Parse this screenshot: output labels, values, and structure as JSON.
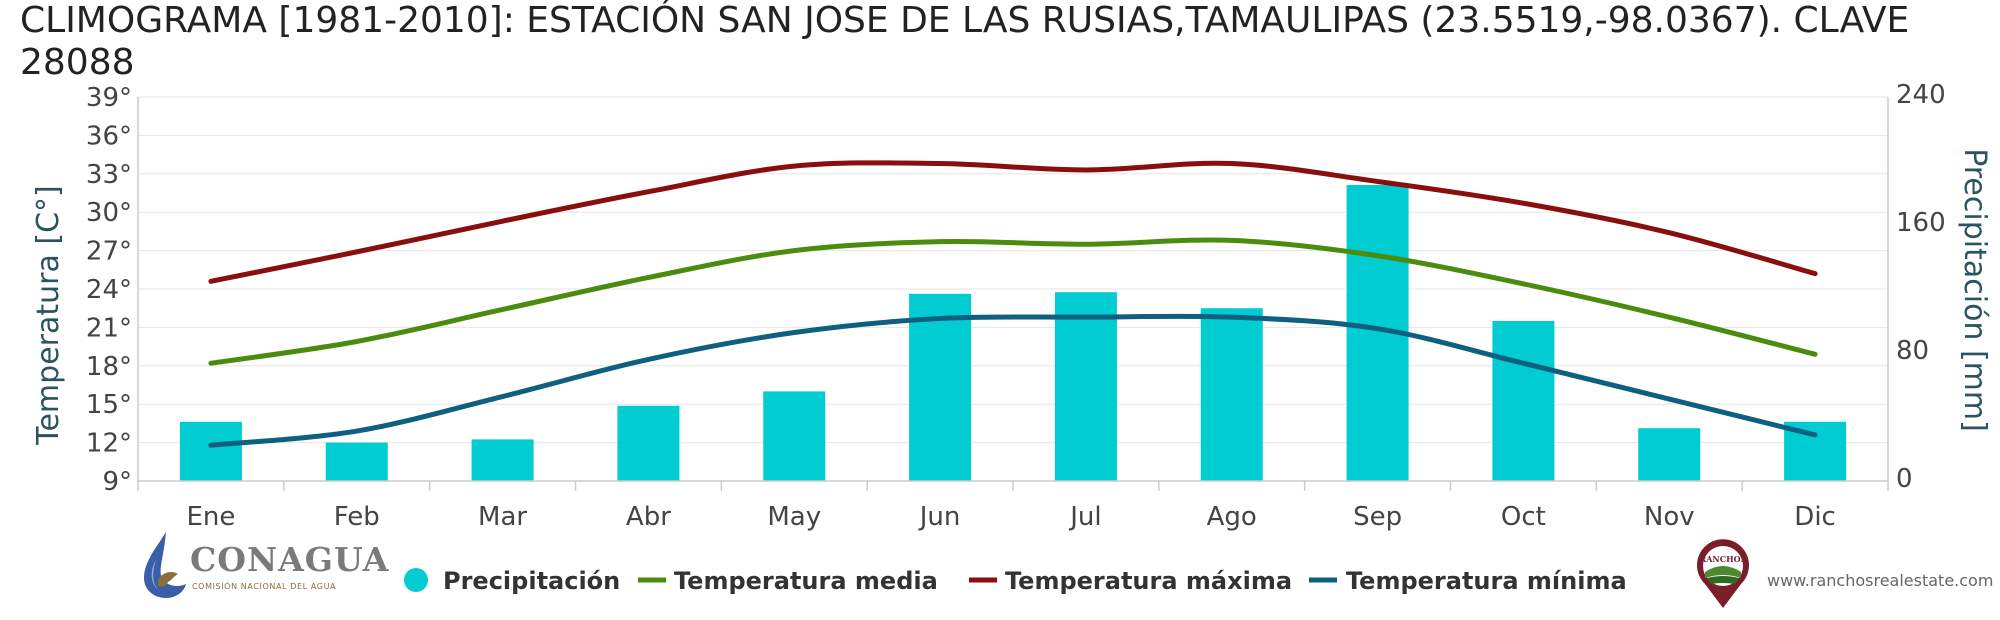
{
  "chart_data": {
    "type": "bar+line",
    "title": "CLIMOGRAMA [1981-2010]: ESTACIÓN SAN JOSE DE LAS RUSIAS,TAMAULIPAS (23.5519,-98.0367). CLAVE 28088",
    "categories": [
      "Ene",
      "Feb",
      "Mar",
      "Abr",
      "May",
      "Jun",
      "Jul",
      "Ago",
      "Sep",
      "Oct",
      "Nov",
      "Dic"
    ],
    "ylabel_left": "Temperatura [C°]",
    "ylabel_right": "Precipitación [mm]",
    "ylim_left": [
      9,
      39
    ],
    "ylim_right": [
      0,
      240
    ],
    "yticks_left": [
      "39°",
      "36°",
      "33°",
      "30°",
      "27°",
      "24°",
      "21°",
      "18°",
      "15°",
      "12°",
      "9°"
    ],
    "yticks_right": [
      "240",
      "160",
      "80",
      "0"
    ],
    "grid": true,
    "legend_position": "bottom",
    "bar_series": {
      "name": "Precipitación",
      "color": "#00ccd2",
      "values": [
        37,
        24,
        26,
        47,
        56,
        117,
        118,
        108,
        185,
        100,
        33,
        37
      ]
    },
    "line_series": [
      {
        "name": "Temperatura media",
        "color": "#4b8c0f",
        "values": [
          18.2,
          19.9,
          22.4,
          24.9,
          27.0,
          27.7,
          27.5,
          27.8,
          26.6,
          24.4,
          21.8,
          18.9
        ]
      },
      {
        "name": "Temperatura máxima",
        "color": "#8b0e0e",
        "values": [
          24.6,
          26.9,
          29.3,
          31.6,
          33.6,
          33.8,
          33.3,
          33.8,
          32.4,
          30.7,
          28.4,
          25.2
        ]
      },
      {
        "name": "Temperatura mínima",
        "color": "#0f5f80",
        "values": [
          11.8,
          12.9,
          15.6,
          18.5,
          20.6,
          21.7,
          21.8,
          21.8,
          20.9,
          18.2,
          15.4,
          12.6
        ]
      }
    ]
  },
  "branding": {
    "conagua_name": "CONAGUA",
    "conagua_subtitle": "COMISIÓN NACIONAL DEL AGUA",
    "ranchos_logo_text": "RANCHOS",
    "website": "www.ranchosrealestate.com"
  }
}
